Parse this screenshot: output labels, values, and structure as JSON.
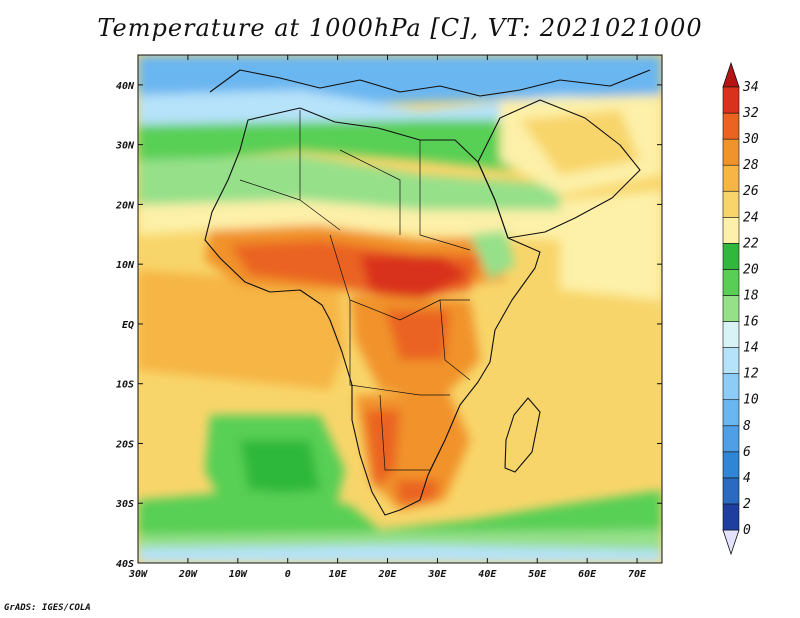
{
  "title": "Temperature at 1000hPa [C], VT: 2021021000",
  "credit": "GrADS: IGES/COLA",
  "map": {
    "projection": "cylindrical lat-lon",
    "lon_range": [
      -30,
      75
    ],
    "lat_range": [
      -40,
      45
    ],
    "lat_ticks": [
      {
        "value": 40,
        "label": "40N"
      },
      {
        "value": 30,
        "label": "30N"
      },
      {
        "value": 20,
        "label": "20N"
      },
      {
        "value": 10,
        "label": "10N"
      },
      {
        "value": 0,
        "label": "EQ"
      },
      {
        "value": -10,
        "label": "10S"
      },
      {
        "value": -20,
        "label": "20S"
      },
      {
        "value": -30,
        "label": "30S"
      },
      {
        "value": -40,
        "label": "40S"
      }
    ],
    "lon_ticks": [
      {
        "value": -30,
        "label": "30W"
      },
      {
        "value": -20,
        "label": "20W"
      },
      {
        "value": -10,
        "label": "10W"
      },
      {
        "value": 0,
        "label": "0"
      },
      {
        "value": 10,
        "label": "10E"
      },
      {
        "value": 20,
        "label": "20E"
      },
      {
        "value": 30,
        "label": "30E"
      },
      {
        "value": 40,
        "label": "40E"
      },
      {
        "value": 50,
        "label": "50E"
      },
      {
        "value": 60,
        "label": "60E"
      },
      {
        "value": 70,
        "label": "70E"
      }
    ]
  },
  "colorbar": {
    "levels": [
      {
        "label": "0",
        "color": "#111a6a"
      },
      {
        "label": "2",
        "color": "#1f3ea0"
      },
      {
        "label": "4",
        "color": "#2a6ac0"
      },
      {
        "label": "6",
        "color": "#2f86d6"
      },
      {
        "label": "8",
        "color": "#4f9fe6"
      },
      {
        "label": "10",
        "color": "#6ab6f0"
      },
      {
        "label": "12",
        "color": "#8ccdf7"
      },
      {
        "label": "14",
        "color": "#b6e2fa"
      },
      {
        "label": "16",
        "color": "#d8f3f5"
      },
      {
        "label": "18",
        "color": "#96e08a"
      },
      {
        "label": "20",
        "color": "#58cf54"
      },
      {
        "label": "22",
        "color": "#2fb83b"
      },
      {
        "label": "24",
        "color": "#fdf0a8"
      },
      {
        "label": "26",
        "color": "#f8d56a"
      },
      {
        "label": "28",
        "color": "#f6b545"
      },
      {
        "label": "30",
        "color": "#f1932c"
      },
      {
        "label": "32",
        "color": "#ea6320"
      },
      {
        "label": "34",
        "color": "#d9321c"
      }
    ],
    "under_color": "#e3e3ff",
    "over_color": "#b41414"
  }
}
